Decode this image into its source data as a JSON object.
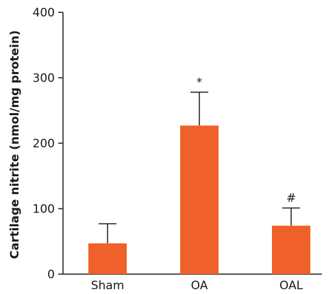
{
  "chart_data": {
    "type": "bar",
    "categories": [
      "Sham",
      "OA",
      "OAL"
    ],
    "values": [
      47,
      227,
      74
    ],
    "errors": [
      30,
      51,
      27
    ],
    "annotations": [
      "",
      "*",
      "#"
    ],
    "xlabel": "",
    "ylabel": "Cartilage nitrite (nmol/mg protein)",
    "ylim": [
      0,
      400
    ],
    "yticks": [
      "0",
      "100",
      "200",
      "300",
      "400"
    ],
    "ytick_values": [
      0,
      100,
      200,
      300,
      400
    ],
    "bar_color": "#f0602a",
    "grid": false,
    "legend": "none"
  }
}
